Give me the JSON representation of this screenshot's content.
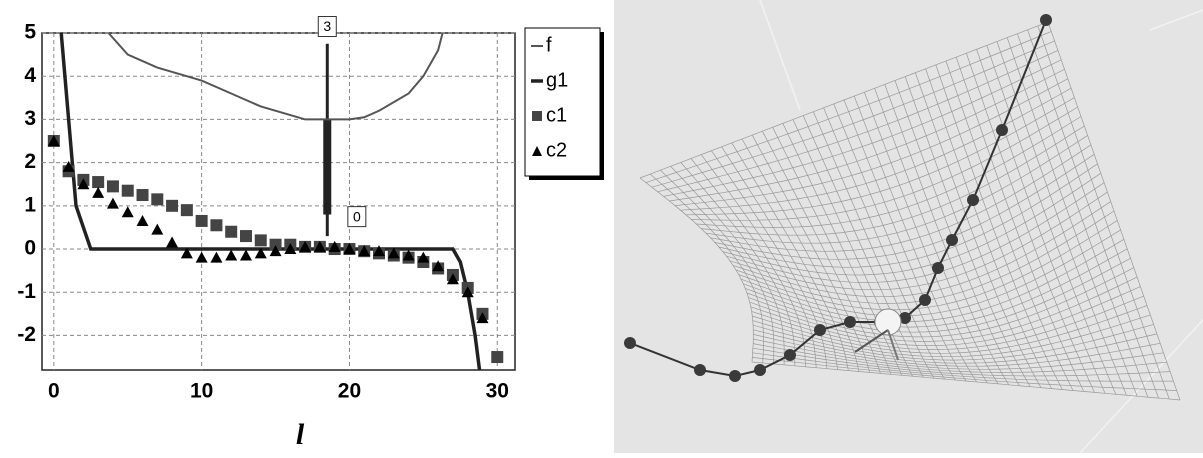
{
  "chart_data": {
    "type": "line",
    "x_label": "l",
    "xlim": [
      -0.8,
      31.2
    ],
    "ylim": [
      -2.8,
      5
    ],
    "xticks": [
      0,
      10,
      20,
      30
    ],
    "yticks": [
      -2,
      -1,
      0,
      1,
      2,
      3,
      4,
      5
    ],
    "grid": true,
    "legend": "right",
    "series": [
      {
        "name": "f",
        "color": "#555555",
        "marker": "none",
        "width": 2,
        "x": [
          3.7,
          5,
          7,
          10,
          12,
          14,
          16,
          17,
          18,
          20,
          21,
          22,
          24,
          25,
          26,
          26.3
        ],
        "values": [
          5,
          4.5,
          4.2,
          3.9,
          3.6,
          3.3,
          3.1,
          3.0,
          3.0,
          3.0,
          3.05,
          3.2,
          3.6,
          4.0,
          4.6,
          5
        ]
      },
      {
        "name": "g1",
        "color": "#222222",
        "marker": "none",
        "width": 3.5,
        "x": [
          0.5,
          1,
          1.5,
          2.5,
          27,
          27.5,
          28,
          28.5,
          28.8
        ],
        "values": [
          5,
          3,
          1,
          0,
          0,
          -0.3,
          -1,
          -2,
          -2.8
        ]
      },
      {
        "name": "c1",
        "color": "#444444",
        "marker": "square",
        "width": 0,
        "x": [
          0,
          1,
          2,
          3,
          4,
          5,
          6,
          7,
          8,
          9,
          10,
          11,
          12,
          13,
          14,
          15,
          16,
          17,
          18,
          19,
          20,
          21,
          22,
          23,
          24,
          25,
          26,
          27,
          28,
          29,
          30
        ],
        "values": [
          2.5,
          1.8,
          1.6,
          1.55,
          1.45,
          1.35,
          1.25,
          1.15,
          1.0,
          0.9,
          0.65,
          0.55,
          0.4,
          0.3,
          0.2,
          0.1,
          0.1,
          0.05,
          0.05,
          0,
          0,
          -0.05,
          -0.1,
          -0.15,
          -0.2,
          -0.3,
          -0.45,
          -0.6,
          -0.9,
          -1.5,
          -2.5
        ]
      },
      {
        "name": "c2",
        "color": "#000000",
        "marker": "triangle",
        "width": 0,
        "x": [
          0,
          1,
          2,
          3,
          4,
          5,
          6,
          7,
          8,
          9,
          10,
          11,
          12,
          13,
          14,
          15,
          16,
          17,
          18,
          19,
          20,
          21,
          22,
          23,
          24,
          25,
          26,
          27,
          28,
          29
        ],
        "values": [
          2.5,
          1.9,
          1.5,
          1.3,
          1.05,
          0.85,
          0.65,
          0.45,
          0.15,
          -0.1,
          -0.2,
          -0.2,
          -0.15,
          -0.15,
          -0.1,
          -0.05,
          0,
          0.05,
          0.05,
          0.05,
          0,
          -0.05,
          -0.05,
          -0.1,
          -0.15,
          -0.2,
          -0.4,
          -0.7,
          -1.0,
          -1.6
        ]
      }
    ],
    "annotations": [
      {
        "text": "3",
        "x": 18.5,
        "y": 5.15
      },
      {
        "text": "0",
        "x": 20.5,
        "y": 0.75
      }
    ]
  }
}
